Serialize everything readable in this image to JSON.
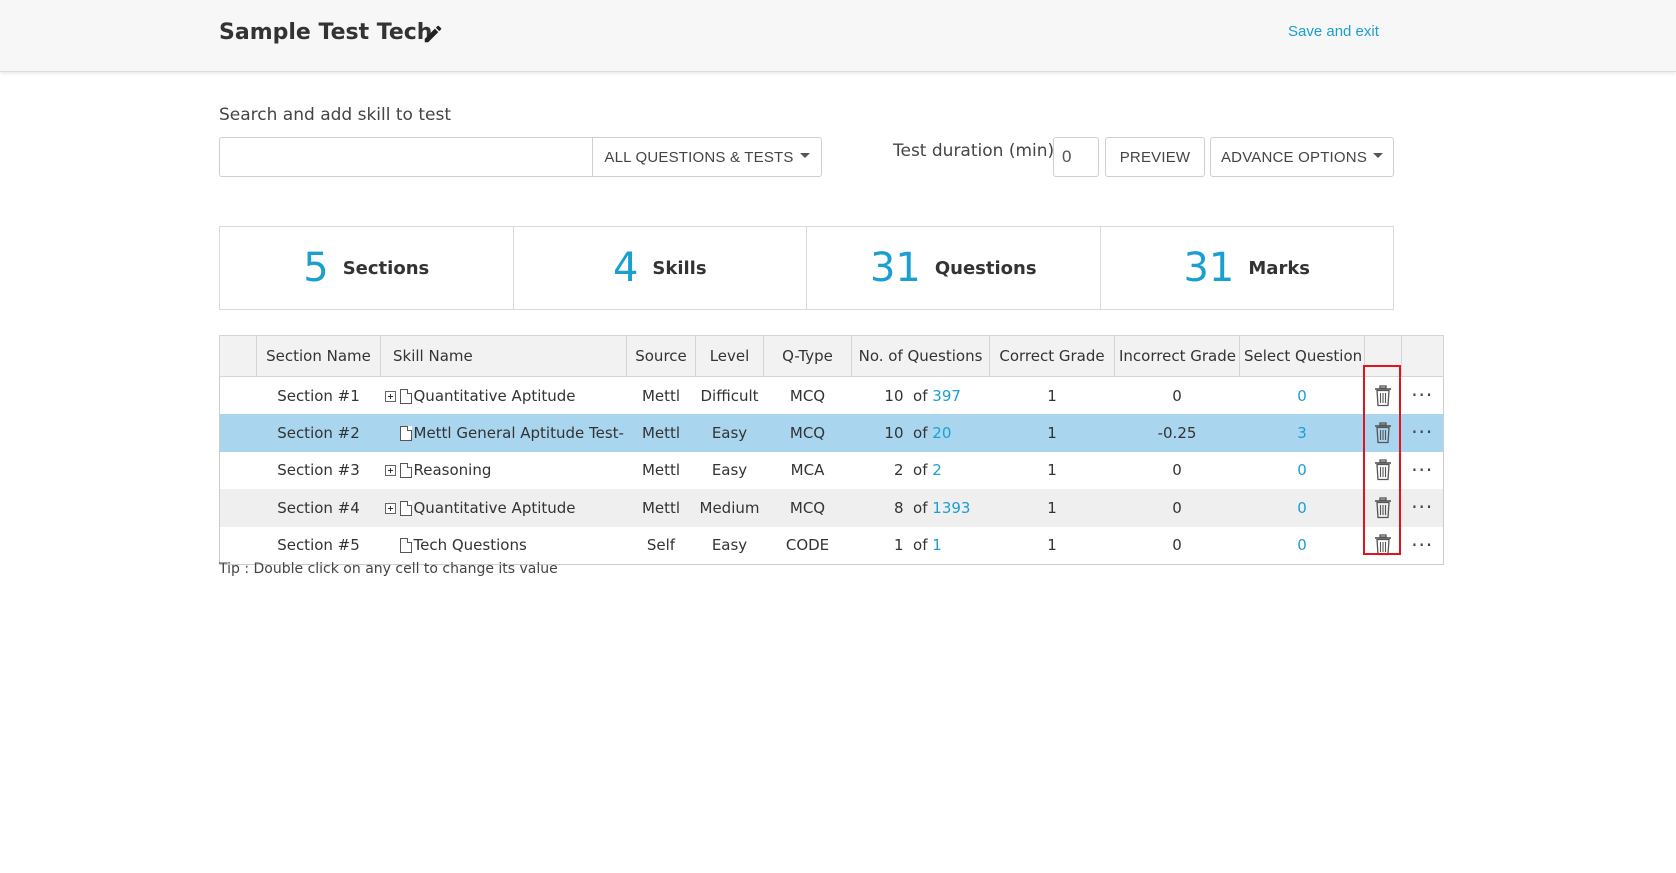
{
  "header": {
    "title": "Sample Test Tech",
    "save_exit": "Save and exit"
  },
  "search": {
    "label": "Search and add skill to test",
    "value": "",
    "placeholder": "",
    "filter_label": "ALL QUESTIONS & TESTS"
  },
  "toolbar": {
    "duration_label": "Test duration (min)",
    "duration_value": "0",
    "preview_label": "PREVIEW",
    "advance_label": "ADVANCE OPTIONS"
  },
  "stats": [
    {
      "value": "5",
      "label": "Sections"
    },
    {
      "value": "4",
      "label": "Skills"
    },
    {
      "value": "31",
      "label": "Questions"
    },
    {
      "value": "31",
      "label": "Marks"
    }
  ],
  "table": {
    "headers": [
      "",
      "Section Name",
      "Skill Name",
      "Source",
      "Level",
      "Q-Type",
      "No. of  Questions",
      "Correct Grade",
      "Incorrect Grade",
      "Select Question",
      "",
      ""
    ],
    "rows": [
      {
        "section": "Section #1",
        "skill": "Quantitative Aptitude",
        "expandable": true,
        "source": "Mettl",
        "level": "Difficult",
        "qtype": "MCQ",
        "count": "10",
        "of": "of",
        "total": "397",
        "correct": "1",
        "incorrect": "0",
        "selected": "0"
      },
      {
        "section": "Section #2",
        "skill": "Mettl General Aptitude Test- A",
        "expandable": false,
        "source": "Mettl",
        "level": "Easy",
        "qtype": "MCQ",
        "count": "10",
        "of": "of",
        "total": "20",
        "correct": "1",
        "incorrect": "-0.25",
        "selected": "3"
      },
      {
        "section": "Section #3",
        "skill": "Reasoning",
        "expandable": true,
        "source": "Mettl",
        "level": "Easy",
        "qtype": "MCA",
        "count": "2",
        "of": "of",
        "total": "2",
        "correct": "1",
        "incorrect": "0",
        "selected": "0"
      },
      {
        "section": "Section #4",
        "skill": "Quantitative Aptitude",
        "expandable": true,
        "source": "Mettl",
        "level": "Medium",
        "qtype": "MCQ",
        "count": "8",
        "of": "of",
        "total": "1393",
        "correct": "1",
        "incorrect": "0",
        "selected": "0"
      },
      {
        "section": "Section #5",
        "skill": "Tech Questions",
        "expandable": false,
        "source": "Self",
        "level": "Easy",
        "qtype": "CODE",
        "count": "1",
        "of": "of",
        "total": "1",
        "correct": "1",
        "incorrect": "0",
        "selected": "0"
      }
    ],
    "more_label": "···"
  },
  "tip": "Tip : Double click on any cell to change its value",
  "colors": {
    "accent": "#1a9fd0",
    "selected_row": "#a9d6ee",
    "alt_row": "#efefef",
    "highlight": "#e0141e"
  },
  "icons": {
    "edit": "pencil-icon",
    "delete": "trash-icon",
    "more": "more-dots-icon",
    "expand": "expand-plus-icon",
    "file": "document-icon",
    "dropdown": "caret-down-icon"
  }
}
